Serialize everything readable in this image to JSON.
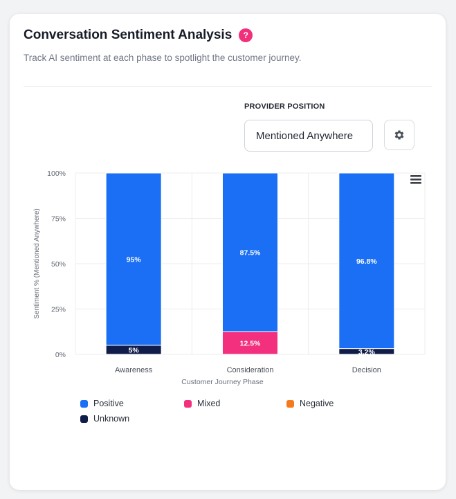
{
  "header": {
    "title": "Conversation Sentiment Analysis",
    "help_glyph": "?",
    "subtitle": "Track AI sentiment at each phase to spotlight the customer journey."
  },
  "provider": {
    "label": "PROVIDER POSITION",
    "value": "Mentioned Anywhere"
  },
  "icons": {
    "settings": "gear-icon",
    "menu": "hamburger-menu-icon",
    "help": "question-icon"
  },
  "colors": {
    "positive": "#1a6ff5",
    "mixed": "#f2307e",
    "negative": "#f5791f",
    "unknown": "#101d4a"
  },
  "chart_data": {
    "type": "bar",
    "stacked": true,
    "categories": [
      "Awareness",
      "Consideration",
      "Decision"
    ],
    "series": [
      {
        "name": "Positive",
        "values": [
          95,
          87.5,
          96.8
        ],
        "labels": [
          "95%",
          "87.5%",
          "96.8%"
        ]
      },
      {
        "name": "Mixed",
        "values": [
          0,
          12.5,
          0
        ],
        "labels": [
          "",
          "12.5%",
          ""
        ]
      },
      {
        "name": "Negative",
        "values": [
          0,
          0,
          0
        ],
        "labels": [
          "",
          "",
          ""
        ]
      },
      {
        "name": "Unknown",
        "values": [
          5,
          0,
          3.2
        ],
        "labels": [
          "5%",
          "",
          "3.2%"
        ]
      }
    ],
    "stack_order": [
      "Unknown",
      "Mixed",
      "Negative",
      "Positive"
    ],
    "xlabel": "Customer Journey Phase",
    "ylabel": "Sentiment % (Mentioned Anywhere)",
    "ylim": [
      0,
      100
    ],
    "yticks": [
      "0%",
      "25%",
      "50%",
      "75%",
      "100%"
    ],
    "grid": true,
    "legend_position": "bottom"
  }
}
